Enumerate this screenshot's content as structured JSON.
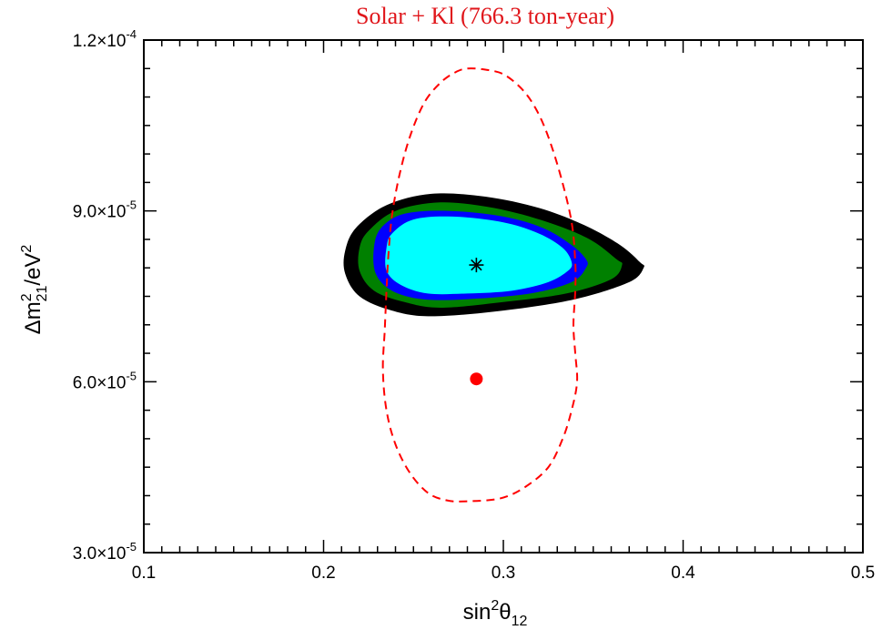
{
  "chart_data": {
    "type": "contour",
    "title": "Solar + Kl (766.3 ton-year)",
    "xlabel": {
      "base": "sin",
      "sup": "2",
      "symbol": "θ",
      "sub": "12"
    },
    "ylabel": {
      "prefix": "Δm",
      "sup": "2",
      "sub": "21",
      "suffix": "/eV",
      "sup2": "2"
    },
    "xlim": [
      0.1,
      0.5
    ],
    "ylim": [
      3e-05,
      0.00012
    ],
    "x_ticks": [
      {
        "value": 0.1,
        "label": "0.1"
      },
      {
        "value": 0.2,
        "label": "0.2"
      },
      {
        "value": 0.3,
        "label": "0.3"
      },
      {
        "value": 0.4,
        "label": "0.4"
      },
      {
        "value": 0.5,
        "label": "0.5"
      }
    ],
    "y_ticks": [
      {
        "value": 3e-05,
        "mantissa": "3.0",
        "times": "×10",
        "exp": "-5"
      },
      {
        "value": 6e-05,
        "mantissa": "6.0",
        "times": "×10",
        "exp": "-5"
      },
      {
        "value": 9e-05,
        "mantissa": "9.0",
        "times": "×10",
        "exp": "-5"
      },
      {
        "value": 0.00012,
        "mantissa": "1.2",
        "times": "×10",
        "exp": "-4"
      }
    ],
    "x_minor_step": 0.01,
    "y_minor_step": 5e-06,
    "grid": false,
    "colors": {
      "region_3sigma": "#000000",
      "region_2sigma": "#008000",
      "region_1sigma_edge": "#0000ff",
      "region_1sigma": "#00ffff",
      "dashed_contour": "#ff0000",
      "title": "#e0161b"
    },
    "best_fit_combined": {
      "x": 0.285,
      "y": 8.05e-05,
      "marker": "asterisk"
    },
    "best_fit_solar": {
      "x": 0.285,
      "y": 6.05e-05,
      "marker": "filled-circle"
    },
    "regions": [
      {
        "name": "outer",
        "color": "#000000",
        "points": [
          [
            0.218,
            8.7e-05
          ],
          [
            0.235,
            9.1e-05
          ],
          [
            0.26,
            9.3e-05
          ],
          [
            0.29,
            9.25e-05
          ],
          [
            0.32,
            9.05e-05
          ],
          [
            0.345,
            8.75e-05
          ],
          [
            0.365,
            8.4e-05
          ],
          [
            0.376,
            8.1e-05
          ],
          [
            0.378,
            8e-05
          ],
          [
            0.37,
            7.75e-05
          ],
          [
            0.34,
            7.45e-05
          ],
          [
            0.3,
            7.25e-05
          ],
          [
            0.26,
            7.15e-05
          ],
          [
            0.238,
            7.25e-05
          ],
          [
            0.22,
            7.5e-05
          ],
          [
            0.212,
            7.9e-05
          ],
          [
            0.212,
            8.3e-05
          ]
        ]
      },
      {
        "name": "middle",
        "color": "#008000",
        "points": [
          [
            0.225,
            8.65e-05
          ],
          [
            0.24,
            9e-05
          ],
          [
            0.265,
            9.15e-05
          ],
          [
            0.295,
            9.05e-05
          ],
          [
            0.325,
            8.8e-05
          ],
          [
            0.348,
            8.5e-05
          ],
          [
            0.363,
            8.15e-05
          ],
          [
            0.366,
            8.05e-05
          ],
          [
            0.36,
            7.8e-05
          ],
          [
            0.335,
            7.55e-05
          ],
          [
            0.3,
            7.4e-05
          ],
          [
            0.265,
            7.3e-05
          ],
          [
            0.245,
            7.4e-05
          ],
          [
            0.228,
            7.6e-05
          ],
          [
            0.22,
            7.95e-05
          ],
          [
            0.22,
            8.35e-05
          ]
        ]
      },
      {
        "name": "inner-edge",
        "color": "#0000ff",
        "points": [
          [
            0.232,
            8.7e-05
          ],
          [
            0.245,
            8.95e-05
          ],
          [
            0.27,
            9e-05
          ],
          [
            0.3,
            8.9e-05
          ],
          [
            0.322,
            8.7e-05
          ],
          [
            0.338,
            8.4e-05
          ],
          [
            0.346,
            8.15e-05
          ],
          [
            0.346,
            8e-05
          ],
          [
            0.338,
            7.75e-05
          ],
          [
            0.315,
            7.55e-05
          ],
          [
            0.28,
            7.45e-05
          ],
          [
            0.255,
            7.45e-05
          ],
          [
            0.238,
            7.6e-05
          ],
          [
            0.229,
            7.9e-05
          ],
          [
            0.228,
            8.35e-05
          ]
        ]
      },
      {
        "name": "inner",
        "color": "#00ffff",
        "points": [
          [
            0.238,
            8.6e-05
          ],
          [
            0.25,
            8.85e-05
          ],
          [
            0.272,
            8.9e-05
          ],
          [
            0.3,
            8.8e-05
          ],
          [
            0.32,
            8.6e-05
          ],
          [
            0.333,
            8.35e-05
          ],
          [
            0.338,
            8.1e-05
          ],
          [
            0.336,
            7.95e-05
          ],
          [
            0.325,
            7.75e-05
          ],
          [
            0.305,
            7.6e-05
          ],
          [
            0.28,
            7.55e-05
          ],
          [
            0.258,
            7.55e-05
          ],
          [
            0.243,
            7.7e-05
          ],
          [
            0.235,
            7.95e-05
          ],
          [
            0.235,
            8.35e-05
          ]
        ]
      }
    ],
    "dashed_contour_points": [
      [
        0.28,
        0.000115
      ],
      [
        0.29,
        0.0001148
      ],
      [
        0.3,
        0.000114
      ],
      [
        0.31,
        0.0001115
      ],
      [
        0.318,
        0.000108
      ],
      [
        0.325,
        0.000103
      ],
      [
        0.332,
        9.6e-05
      ],
      [
        0.338,
        8.8e-05
      ],
      [
        0.34,
        8.1e-05
      ],
      [
        0.34,
        7.6e-05
      ],
      [
        0.339,
        7e-05
      ],
      [
        0.34,
        6.5e-05
      ],
      [
        0.341,
        6e-05
      ],
      [
        0.338,
        5.5e-05
      ],
      [
        0.333,
        5e-05
      ],
      [
        0.325,
        4.5e-05
      ],
      [
        0.312,
        4.15e-05
      ],
      [
        0.298,
        3.95e-05
      ],
      [
        0.278,
        3.9e-05
      ],
      [
        0.268,
        3.92e-05
      ],
      [
        0.258,
        4.05e-05
      ],
      [
        0.248,
        4.4e-05
      ],
      [
        0.24,
        4.9e-05
      ],
      [
        0.235,
        5.5e-05
      ],
      [
        0.233,
        6.2e-05
      ],
      [
        0.234,
        6.9e-05
      ],
      [
        0.235,
        7.6e-05
      ],
      [
        0.236,
        8.2e-05
      ],
      [
        0.238,
        8.9e-05
      ],
      [
        0.242,
        9.6e-05
      ],
      [
        0.248,
        0.000103
      ],
      [
        0.256,
        0.000109
      ],
      [
        0.265,
        0.0001125
      ],
      [
        0.273,
        0.0001143
      ]
    ]
  }
}
